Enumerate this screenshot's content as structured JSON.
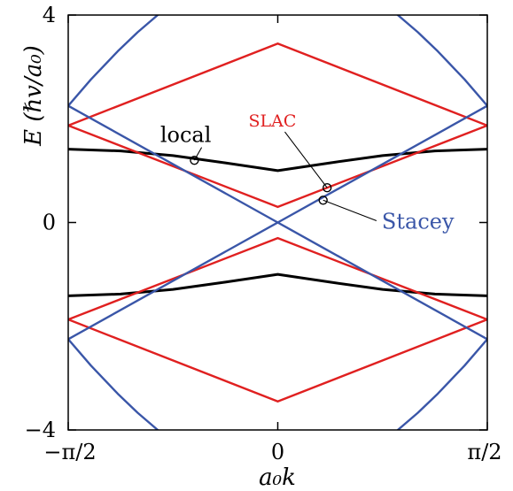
{
  "chart_data": {
    "type": "line",
    "xlabel": "a₀k",
    "ylabel": "E  (ℏv/a₀)",
    "xlim": [
      -1.5708,
      1.5708
    ],
    "ylim": [
      -4,
      4
    ],
    "x_ticks": [
      {
        "value": -1.5708,
        "label": "−π/2"
      },
      {
        "value": 0,
        "label": "0"
      },
      {
        "value": 1.5708,
        "label": "π/2"
      }
    ],
    "y_ticks": [
      {
        "value": 4,
        "label": "4"
      },
      {
        "value": 0,
        "label": "0"
      },
      {
        "value": -4,
        "label": "−4"
      }
    ],
    "grid": false,
    "series": [
      {
        "name": "local",
        "color": "#000000",
        "curves": [
          {
            "x": [
              -1.5708,
              -1.1781,
              -0.7854,
              -0.3927,
              0,
              0.3927,
              0.7854,
              1.1781,
              1.5708
            ],
            "y": [
              1.414,
              1.38,
              1.29,
              1.15,
              1.0,
              1.15,
              1.29,
              1.38,
              1.414
            ]
          },
          {
            "x": [
              -1.5708,
              -1.1781,
              -0.7854,
              -0.3927,
              0,
              0.3927,
              0.7854,
              1.1781,
              1.5708
            ],
            "y": [
              -1.414,
              -1.38,
              -1.29,
              -1.15,
              -1.0,
              -1.15,
              -1.29,
              -1.38,
              -1.414
            ]
          }
        ]
      },
      {
        "name": "SLAC",
        "color": "#e02020",
        "curves": [
          {
            "x": [
              -1.5708,
              0,
              1.5708
            ],
            "y": [
              1.87,
              0.3,
              1.87
            ]
          },
          {
            "x": [
              -1.5708,
              0,
              1.5708
            ],
            "y": [
              1.87,
              3.45,
              1.87
            ]
          },
          {
            "x": [
              -1.5708,
              0,
              1.5708
            ],
            "y": [
              -1.87,
              -0.3,
              -1.87
            ]
          },
          {
            "x": [
              -1.5708,
              0,
              1.5708
            ],
            "y": [
              -1.87,
              -3.45,
              -1.87
            ]
          }
        ]
      },
      {
        "name": "Stacey",
        "color": "#3a56a8",
        "curves": [
          {
            "x": [
              -1.5708,
              0,
              1.5708
            ],
            "y": [
              2.25,
              0,
              2.25
            ]
          },
          {
            "x": [
              -1.5708,
              0,
              1.5708
            ],
            "y": [
              -2.25,
              0,
              -2.25
            ]
          },
          {
            "x": [
              -1.5708,
              -1.4,
              -1.2,
              -1.05,
              -0.9
            ],
            "y": [
              2.25,
              2.76,
              3.3,
              3.67,
              4.0
            ]
          },
          {
            "x": [
              1.5708,
              1.4,
              1.2,
              1.05,
              0.9
            ],
            "y": [
              2.25,
              2.76,
              3.3,
              3.67,
              4.0
            ]
          },
          {
            "x": [
              -1.5708,
              -1.4,
              -1.2,
              -1.05,
              -0.9
            ],
            "y": [
              -2.25,
              -2.76,
              -3.3,
              -3.67,
              -4.0
            ]
          },
          {
            "x": [
              1.5708,
              1.4,
              1.2,
              1.05,
              0.9
            ],
            "y": [
              -2.25,
              -2.76,
              -3.3,
              -3.67,
              -4.0
            ]
          }
        ]
      }
    ],
    "annotations": [
      {
        "text": "local",
        "series": "local",
        "point": [
          -0.625,
          1.2
        ],
        "text_at": [
          -0.69,
          1.55
        ],
        "color": "#000000"
      },
      {
        "text": "SLAC",
        "series": "SLAC",
        "point": [
          0.37,
          0.67
        ],
        "text_at": [
          -0.04,
          1.85
        ],
        "color": "#e02020"
      },
      {
        "text": "Stacey",
        "series": "Stacey",
        "point": [
          0.34,
          0.43
        ],
        "text_at": [
          0.78,
          0.0
        ],
        "color": "#3a56a8"
      }
    ]
  }
}
